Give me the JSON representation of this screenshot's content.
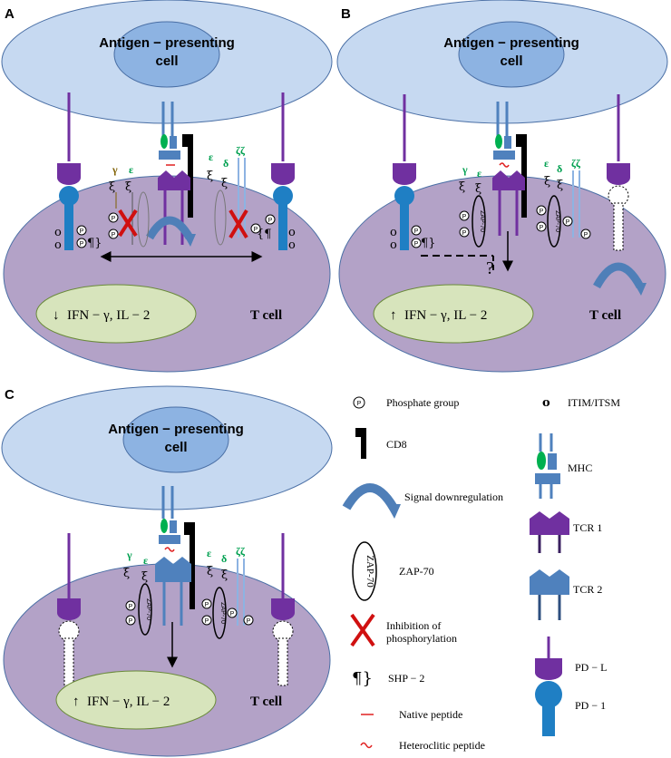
{
  "panels": {
    "A": {
      "label": "A",
      "apc_line1": "Antigen − presenting",
      "apc_line2": "cell",
      "nucleus_arrow": "↓",
      "nucleus_text": "IFN − γ, IL − 2",
      "cell_label": "T cell"
    },
    "B": {
      "label": "B",
      "apc_line1": "Antigen − presenting",
      "apc_line2": "cell",
      "nucleus_arrow": "↑",
      "nucleus_text": "IFN − γ, IL − 2",
      "cell_label": "T cell",
      "question": "?"
    },
    "C": {
      "label": "C",
      "apc_line1": "Antigen − presenting",
      "apc_line2": "cell",
      "nucleus_arrow": "↑",
      "nucleus_text": "IFN − γ, IL − 2",
      "cell_label": "T cell"
    }
  },
  "chains": {
    "gamma": "γ",
    "epsilon": "ε",
    "delta": "δ",
    "zeta": "ζζ",
    "zap": "ZAP-70",
    "p": "P",
    "itim": "o"
  },
  "legend": {
    "phosphate": "Phosphate group",
    "cd8": "CD8",
    "downreg": "Signal downregulation",
    "zap70": "ZAP-70",
    "inhibition_1": "Inhibition of",
    "inhibition_2": "phosphorylation",
    "shp2": "SHP − 2",
    "native": "Native peptide",
    "heteroclitic": "Heteroclitic  peptide",
    "itim": "ITIM/ITSM",
    "mhc": "MHC",
    "tcr1": "TCR 1",
    "tcr2": "TCR 2",
    "pdl": "PD − L",
    "pd1": "PD − 1"
  },
  "colors": {
    "apc": "#c6d9f1",
    "apc_nucleus": "#8db3e2",
    "tcell": "#b3a2c7",
    "nucleus": "#d7e4bc",
    "pd1": "#1f7fc4",
    "pdl": "#7030a0",
    "tcr1": "#7030a0",
    "tcr2": "#4f81bd",
    "mhc": "#4f81bd",
    "peptide_green": "#00b050",
    "arrow_blue": "#4f7fb8",
    "x_red": "#d01010"
  }
}
